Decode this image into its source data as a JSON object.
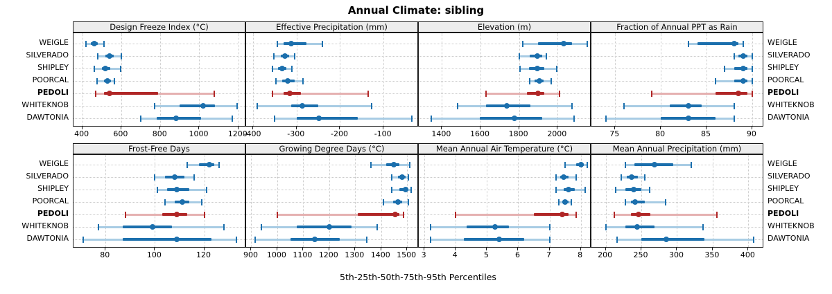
{
  "title": "Annual Climate: sibling",
  "highlight_site": "PEDOLI",
  "colors": {
    "series": "#1b6fad",
    "series_light": "#a8cce4",
    "highlight": "#b02626",
    "highlight_light": "#e5b1b1",
    "header_bg": "#ededed",
    "grid": "#c9c9c9",
    "border": "#1a1a1a"
  },
  "chart_data": {
    "type": "dotplot-percentiles",
    "xlabel": "5th-25th-50th-75th-95th Percentiles",
    "percentile_levels": [
      "5th",
      "25th",
      "50th",
      "75th",
      "95th"
    ],
    "layout": {
      "rows": 2,
      "cols": 4,
      "legend_position": "none",
      "grid": "dotted"
    },
    "sites": [
      "WEIGLE",
      "SILVERADO",
      "SHIPLEY",
      "POORCAL",
      "PEDOLI",
      "WHITEKNOB",
      "DAWTONIA"
    ],
    "panels": [
      {
        "title": "Design Freeze Index (°C)",
        "ticks": [
          400,
          600,
          800,
          1000,
          1200
        ],
        "range": [
          355,
          1240
        ],
        "percentiles": [
          [
            420,
            445,
            462,
            480,
            510
          ],
          [
            480,
            520,
            540,
            560,
            600
          ],
          [
            460,
            500,
            520,
            545,
            595
          ],
          [
            475,
            510,
            530,
            548,
            565
          ],
          [
            470,
            510,
            540,
            790,
            1075
          ],
          [
            770,
            900,
            1020,
            1080,
            1195
          ],
          [
            700,
            780,
            880,
            1010,
            1170
          ]
        ]
      },
      {
        "title": "Effective Precipitation (mm)",
        "ticks": [
          -400,
          -300,
          -200,
          -100
        ],
        "range": [
          -416,
          -19
        ],
        "percentiles": [
          [
            -345,
            -330,
            -313,
            -278,
            -240
          ],
          [
            -352,
            -337,
            -327,
            -317,
            -305
          ],
          [
            -356,
            -342,
            -333,
            -323,
            -310
          ],
          [
            -347,
            -333,
            -320,
            -305,
            -285
          ],
          [
            -356,
            -330,
            -315,
            -290,
            -135
          ],
          [
            -390,
            -312,
            -287,
            -250,
            -127
          ],
          [
            -350,
            -300,
            -248,
            -160,
            -35
          ]
        ]
      },
      {
        "title": "Elevation (m)",
        "ticks": [
          1400,
          1600,
          1800,
          2000
        ],
        "range": [
          1280,
          2175
        ],
        "percentiles": [
          [
            1820,
            1900,
            2030,
            2075,
            2155
          ],
          [
            1800,
            1855,
            1895,
            1920,
            1940
          ],
          [
            1805,
            1850,
            1895,
            1930,
            1995
          ],
          [
            1855,
            1880,
            1905,
            1928,
            1965
          ],
          [
            1630,
            1840,
            1900,
            1930,
            2010
          ],
          [
            1480,
            1630,
            1735,
            1860,
            2075
          ],
          [
            1345,
            1595,
            1775,
            1920,
            2085
          ]
        ]
      },
      {
        "title": "Fraction of Annual PPT as Rain",
        "ticks": [
          75,
          80,
          85,
          90
        ],
        "range": [
          72.4,
          91.3
        ],
        "percentiles": [
          [
            83,
            84,
            88,
            88.5,
            89
          ],
          [
            88,
            88.5,
            89,
            89.5,
            90
          ],
          [
            87,
            88,
            89,
            89.5,
            90
          ],
          [
            86,
            88,
            89,
            89.5,
            90
          ],
          [
            79,
            86,
            88.5,
            89.5,
            90
          ],
          [
            76,
            81,
            83,
            84.5,
            88
          ],
          [
            74,
            80,
            83,
            86,
            88
          ]
        ]
      },
      {
        "title": "Frost-Free Days",
        "ticks": [
          80,
          100,
          120
        ],
        "range": [
          67,
          137
        ],
        "percentiles": [
          [
            113,
            118,
            122,
            124,
            126
          ],
          [
            100,
            104,
            108,
            112,
            116
          ],
          [
            101,
            105,
            109,
            114,
            121
          ],
          [
            104,
            108,
            111,
            114,
            119
          ],
          [
            88,
            103,
            109,
            113,
            120
          ],
          [
            77,
            87,
            99,
            107,
            128
          ],
          [
            71,
            87,
            109,
            123,
            133
          ]
        ]
      },
      {
        "title": "Growing Degree Days (°C)",
        "ticks": [
          900,
          1000,
          1100,
          1200,
          1300,
          1400,
          1500
        ],
        "range": [
          880,
          1545
        ],
        "percentiles": [
          [
            1360,
            1420,
            1450,
            1470,
            1510
          ],
          [
            1440,
            1465,
            1480,
            1495,
            1505
          ],
          [
            1440,
            1470,
            1495,
            1505,
            1515
          ],
          [
            1410,
            1445,
            1465,
            1480,
            1505
          ],
          [
            1000,
            1310,
            1455,
            1470,
            1485
          ],
          [
            940,
            1075,
            1200,
            1285,
            1385
          ],
          [
            915,
            1050,
            1145,
            1240,
            1345
          ]
        ]
      },
      {
        "title": "Mean Annual Air Temperature (°C)",
        "ticks": [
          3,
          4,
          5,
          6,
          7,
          8
        ],
        "range": [
          2.82,
          8.34
        ],
        "percentiles": [
          [
            7.5,
            7.85,
            8.0,
            8.1,
            8.2
          ],
          [
            7.2,
            7.35,
            7.45,
            7.6,
            7.85
          ],
          [
            7.2,
            7.45,
            7.6,
            7.8,
            8.15
          ],
          [
            7.3,
            7.4,
            7.5,
            7.6,
            7.7
          ],
          [
            4.0,
            6.5,
            7.4,
            7.6,
            7.85
          ],
          [
            3.2,
            4.35,
            5.25,
            5.7,
            7.0
          ],
          [
            3.2,
            4.25,
            5.4,
            6.2,
            7.0
          ]
        ]
      },
      {
        "title": "Mean Annual Precipitation (mm)",
        "ticks": [
          200,
          250,
          300,
          350,
          400
        ],
        "range": [
          180,
          422
        ],
        "percentiles": [
          [
            228,
            240,
            268,
            295,
            320
          ],
          [
            222,
            230,
            236,
            245,
            255
          ],
          [
            214,
            228,
            239,
            250,
            262
          ],
          [
            228,
            235,
            241,
            255,
            284
          ],
          [
            212,
            235,
            246,
            263,
            356
          ],
          [
            200,
            228,
            244,
            268,
            336
          ],
          [
            216,
            250,
            285,
            338,
            407
          ]
        ]
      }
    ]
  }
}
